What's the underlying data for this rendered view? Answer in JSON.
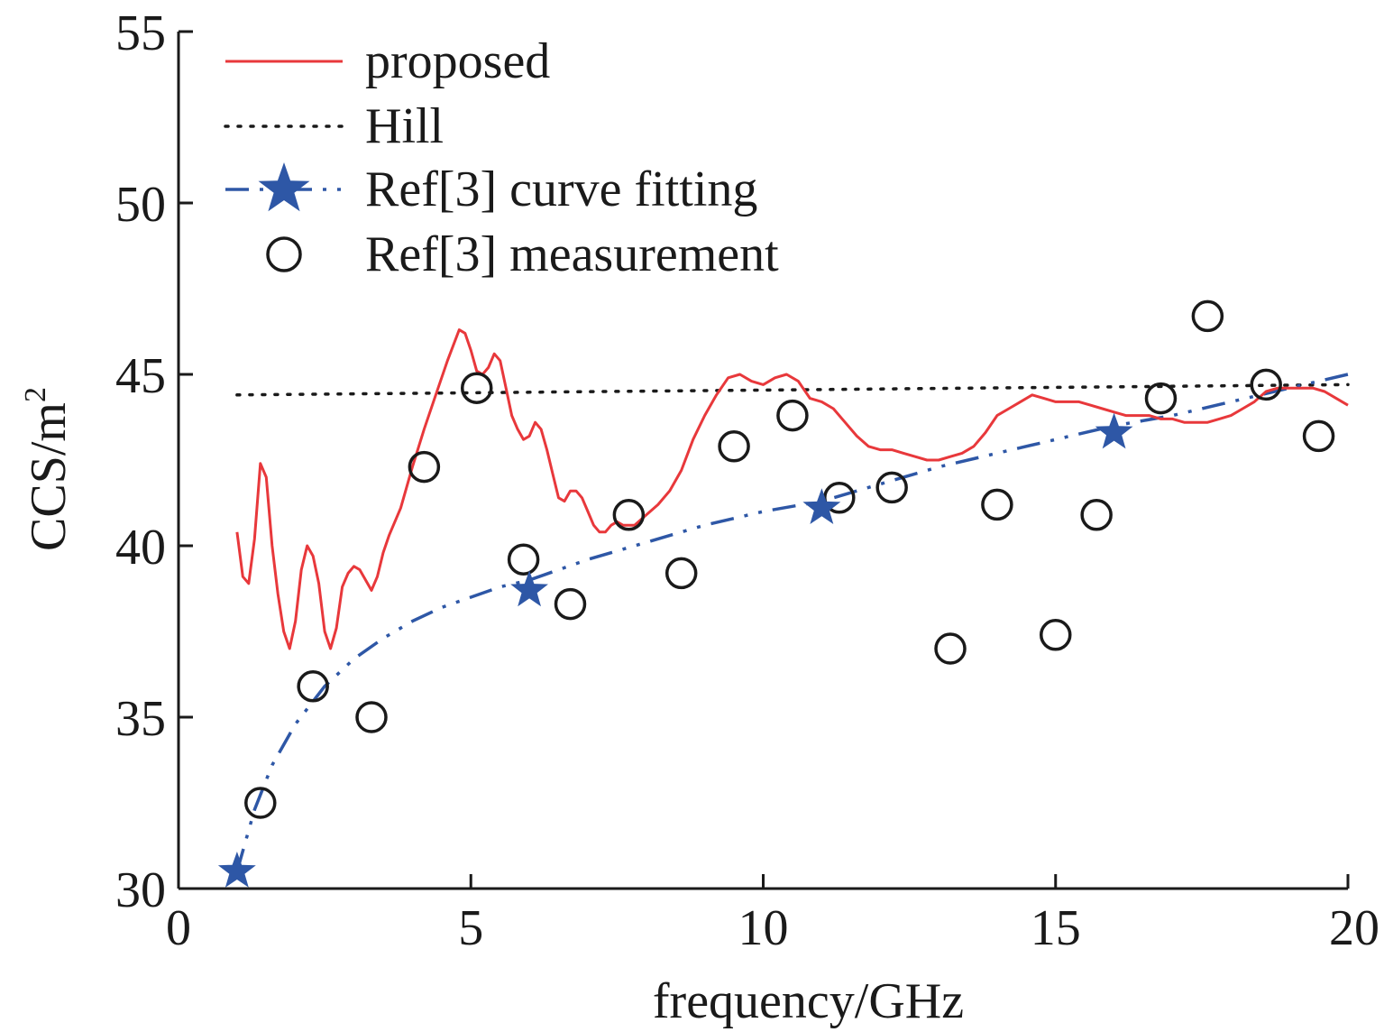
{
  "chart_data": {
    "type": "line",
    "xlabel": "frequency/GHz",
    "ylabel_base": "CCS/m",
    "ylabel_sup": "2",
    "xlim": [
      0,
      20
    ],
    "ylim": [
      30,
      55
    ],
    "xticks": [
      0,
      5,
      10,
      15,
      20
    ],
    "yticks": [
      30,
      35,
      40,
      45,
      50,
      55
    ],
    "grid": false,
    "legend_position": "top-left",
    "colors": {
      "proposed": "#e8383b",
      "hill": "#1a1a1a",
      "fit": "#2e57a6",
      "measurement": "#1a1a1a"
    },
    "series": [
      {
        "name": "proposed",
        "style": "solid",
        "x": [
          1.0,
          1.1,
          1.2,
          1.3,
          1.4,
          1.5,
          1.6,
          1.7,
          1.8,
          1.9,
          2.0,
          2.1,
          2.2,
          2.3,
          2.4,
          2.5,
          2.6,
          2.7,
          2.8,
          2.9,
          3.0,
          3.1,
          3.2,
          3.3,
          3.4,
          3.5,
          3.6,
          3.8,
          4.0,
          4.2,
          4.4,
          4.6,
          4.8,
          4.9,
          5.0,
          5.1,
          5.2,
          5.3,
          5.4,
          5.5,
          5.6,
          5.7,
          5.8,
          5.9,
          6.0,
          6.1,
          6.2,
          6.3,
          6.4,
          6.5,
          6.6,
          6.7,
          6.8,
          6.9,
          7.0,
          7.1,
          7.2,
          7.3,
          7.4,
          7.5,
          7.6,
          7.7,
          7.8,
          8.0,
          8.2,
          8.4,
          8.6,
          8.8,
          9.0,
          9.2,
          9.4,
          9.6,
          9.8,
          10.0,
          10.2,
          10.4,
          10.6,
          10.8,
          11.0,
          11.2,
          11.4,
          11.6,
          11.8,
          12.0,
          12.2,
          12.4,
          12.6,
          12.8,
          13.0,
          13.2,
          13.4,
          13.6,
          13.8,
          14.0,
          14.2,
          14.4,
          14.6,
          14.8,
          15.0,
          15.2,
          15.4,
          15.6,
          15.8,
          16.0,
          16.2,
          16.4,
          16.6,
          16.8,
          17.0,
          17.2,
          17.4,
          17.6,
          17.8,
          18.0,
          18.2,
          18.4,
          18.6,
          18.8,
          19.0,
          19.2,
          19.4,
          19.6,
          19.8,
          20.0
        ],
        "y": [
          40.4,
          39.1,
          38.9,
          40.2,
          42.4,
          42.0,
          40.0,
          38.6,
          37.5,
          37.0,
          37.8,
          39.3,
          40.0,
          39.7,
          38.9,
          37.5,
          37.0,
          37.6,
          38.8,
          39.2,
          39.4,
          39.3,
          39.0,
          38.7,
          39.1,
          39.8,
          40.3,
          41.1,
          42.3,
          43.4,
          44.4,
          45.4,
          46.3,
          46.2,
          45.7,
          45.1,
          45.0,
          45.2,
          45.6,
          45.4,
          44.6,
          43.8,
          43.4,
          43.1,
          43.2,
          43.6,
          43.4,
          42.8,
          42.1,
          41.4,
          41.3,
          41.6,
          41.6,
          41.4,
          41.0,
          40.6,
          40.4,
          40.4,
          40.6,
          40.7,
          40.6,
          40.6,
          40.6,
          40.9,
          41.2,
          41.6,
          42.2,
          43.1,
          43.8,
          44.4,
          44.9,
          45.0,
          44.8,
          44.7,
          44.9,
          45.0,
          44.8,
          44.3,
          44.2,
          44.0,
          43.6,
          43.2,
          42.9,
          42.8,
          42.8,
          42.7,
          42.6,
          42.5,
          42.5,
          42.6,
          42.7,
          42.9,
          43.3,
          43.8,
          44.0,
          44.2,
          44.4,
          44.3,
          44.2,
          44.2,
          44.2,
          44.1,
          44.0,
          43.9,
          43.8,
          43.8,
          43.8,
          43.7,
          43.7,
          43.6,
          43.6,
          43.6,
          43.7,
          43.8,
          44.0,
          44.2,
          44.5,
          44.6,
          44.6,
          44.6,
          44.6,
          44.5,
          44.3,
          44.1
        ]
      },
      {
        "name": "Hill",
        "style": "dotted",
        "x": [
          1.0,
          20.0
        ],
        "y": [
          44.4,
          44.7
        ]
      },
      {
        "name": "Ref[3] curve fitting",
        "style": "dash-dot-dot",
        "marker": "star",
        "x": [
          1.0,
          1.3,
          1.6,
          2.0,
          2.5,
          3.0,
          3.5,
          4.0,
          4.5,
          5.0,
          5.5,
          6.0,
          7.0,
          8.0,
          9.0,
          10.0,
          11.0,
          12.0,
          13.0,
          14.0,
          15.0,
          16.0,
          17.0,
          18.0,
          19.0,
          20.0
        ],
        "y": [
          30.5,
          32.3,
          33.6,
          34.8,
          35.9,
          36.7,
          37.3,
          37.8,
          38.2,
          38.5,
          38.8,
          39.0,
          39.6,
          40.1,
          40.6,
          41.0,
          41.3,
          41.8,
          42.3,
          42.7,
          43.1,
          43.5,
          43.8,
          44.2,
          44.6,
          45.0
        ],
        "marker_x": [
          1.0,
          6.0,
          11.0,
          16.0
        ],
        "marker_y": [
          30.5,
          38.7,
          41.1,
          43.3
        ]
      },
      {
        "name": "Ref[3] measurement",
        "style": "markers",
        "marker": "circle",
        "x": [
          1.4,
          2.3,
          3.3,
          4.2,
          5.1,
          5.9,
          6.7,
          7.7,
          8.6,
          9.5,
          10.5,
          11.3,
          12.2,
          13.2,
          14.0,
          15.0,
          15.7,
          16.8,
          17.6,
          18.6,
          19.5
        ],
        "y": [
          32.5,
          35.9,
          35.0,
          42.3,
          44.6,
          39.6,
          38.3,
          40.9,
          39.2,
          42.9,
          43.8,
          41.4,
          41.7,
          37.0,
          41.2,
          37.4,
          40.9,
          44.3,
          46.7,
          44.7,
          43.2
        ]
      }
    ]
  }
}
